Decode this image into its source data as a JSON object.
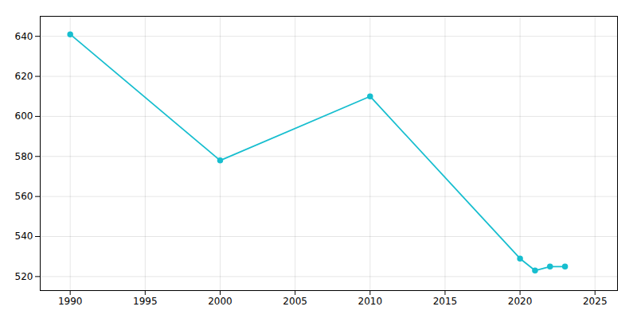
{
  "chart_data": {
    "type": "line",
    "x": [
      1990,
      2000,
      2010,
      2020,
      2021,
      2022,
      2023
    ],
    "values": [
      641,
      578,
      610,
      529,
      523,
      525,
      525
    ],
    "color": "#17BECF",
    "marker": "circle",
    "xlim": [
      1988,
      2026.5
    ],
    "ylim": [
      513,
      650
    ],
    "xticks": [
      1990,
      1995,
      2000,
      2005,
      2010,
      2015,
      2020,
      2025
    ],
    "yticks": [
      520,
      540,
      560,
      580,
      600,
      620,
      640
    ],
    "grid": true
  }
}
